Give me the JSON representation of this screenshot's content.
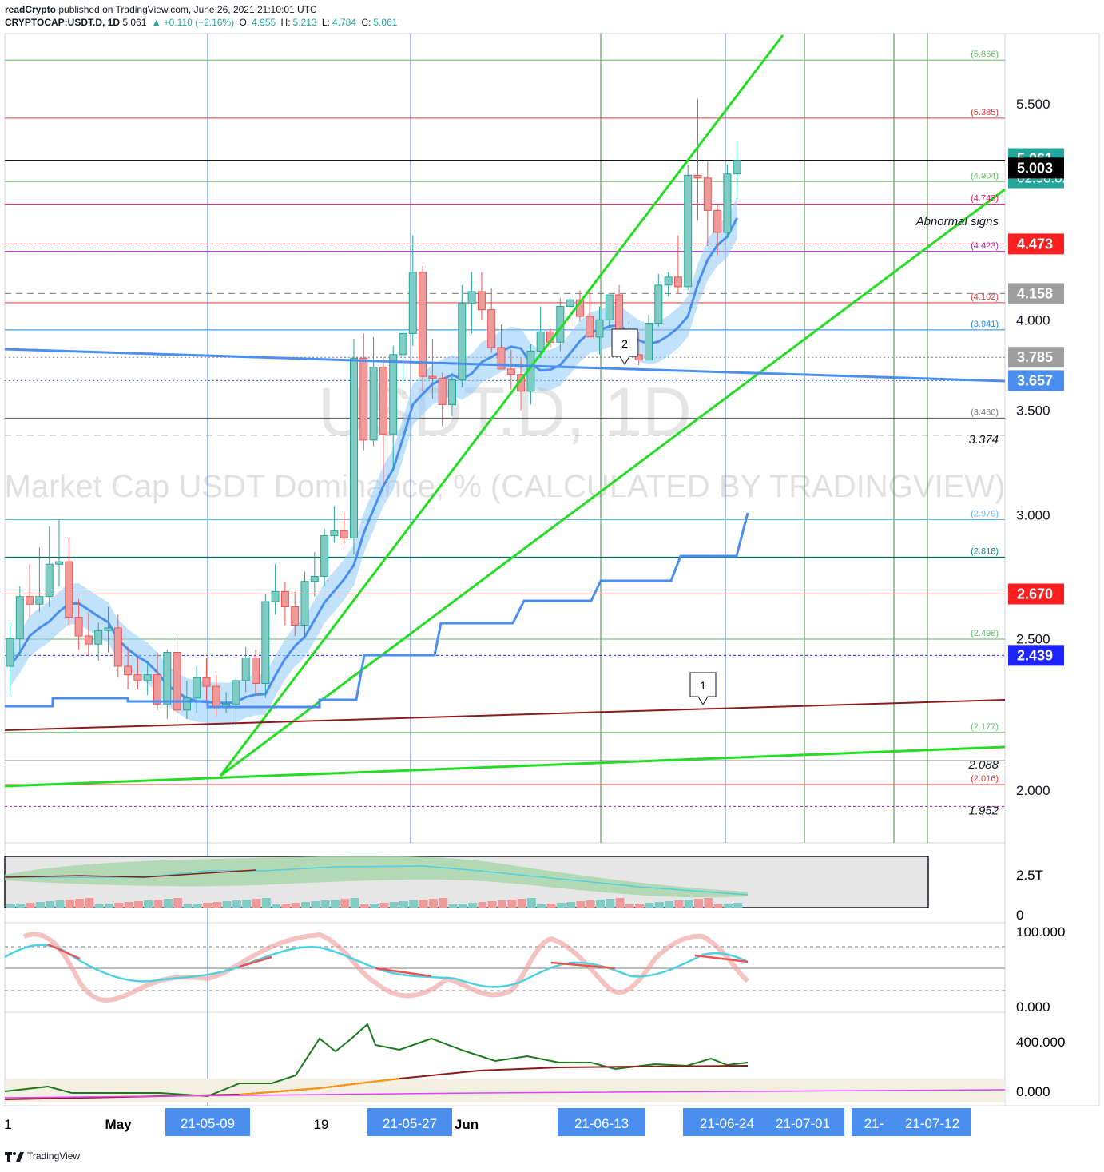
{
  "header": {
    "author": "readCrypto",
    "published_text": "published on TradingView.com, June 26, 2021 21:10:01 UTC",
    "symbol": "CRYPTOCAP:USDT.D, 1D",
    "last": "5.061",
    "change": "+0.110 (+2.16%)",
    "o_label": "O:",
    "o_value": "4.955",
    "h_label": "H:",
    "h_value": "5.213",
    "l_label": "L:",
    "l_value": "4.784",
    "c_label": "C:",
    "c_value": "5.061"
  },
  "footer": {
    "brand": "TradingView"
  },
  "watermark": {
    "symbol": "USDT.D, 1D",
    "description": "Market Cap USDT Dominance, % (CALCULATED BY TRADINGVIEW)"
  },
  "annotations": {
    "abnormal": "Abnormal signs",
    "callout_1": "1",
    "callout_2": "2"
  },
  "price_axis": {
    "ticks": [
      "5.500",
      "4.000",
      "3.500",
      "3.000",
      "2.500",
      "2.000"
    ],
    "badges": [
      {
        "text": "5.061",
        "sub": "02:50:02",
        "bg": "#26a69a"
      },
      {
        "text": "5.003",
        "bg": "#000000"
      },
      {
        "text": "4.473",
        "bg": "#ff1e1e"
      },
      {
        "text": "4.158",
        "bg": "#9e9e9e"
      },
      {
        "text": "3.785",
        "bg": "#9e9e9e"
      },
      {
        "text": "3.657",
        "bg": "#4a8ff0"
      },
      {
        "text": "2.670",
        "bg": "#ff1e1e"
      },
      {
        "text": "2.439",
        "bg": "#1e24ff"
      }
    ],
    "level_labels": [
      {
        "text": "(5.866)",
        "color": "#66bb6a"
      },
      {
        "text": "(5.385)",
        "color": "#e53935"
      },
      {
        "text": "(4.904)",
        "color": "#66bb6a"
      },
      {
        "text": "(4.743)",
        "color": "#d81b60"
      },
      {
        "text": "(4.423)",
        "color": "#8e24aa"
      },
      {
        "text": "(4.102)",
        "color": "#e53935"
      },
      {
        "text": "(3.941)",
        "color": "#1e88e5"
      },
      {
        "text": "(3.460)",
        "color": "#757575"
      },
      {
        "text": "3.374",
        "color": "#131722"
      },
      {
        "text": "(2.979)",
        "color": "#64b5f6"
      },
      {
        "text": "(2.818)",
        "color": "#00897b"
      },
      {
        "text": "(2.498)",
        "color": "#66bb6a"
      },
      {
        "text": "(2.177)",
        "color": "#66bb6a"
      },
      {
        "text": "2.088",
        "color": "#131722"
      },
      {
        "text": "(2.016)",
        "color": "#e53935"
      },
      {
        "text": "1.952",
        "color": "#131722"
      }
    ],
    "volume_ticks": [
      "2.5T",
      "0"
    ],
    "osc_ticks": [
      "100.000",
      "0.000"
    ],
    "obv_ticks": [
      "400.000",
      "0.000"
    ]
  },
  "time_axis": {
    "labels": [
      "1",
      "May",
      "19",
      "Jun"
    ],
    "highlighted": [
      "21-05-09",
      "21-05-27",
      "21-06-13",
      "21-06-24",
      "21-07-01",
      "21-",
      "21-07-12"
    ]
  },
  "chart_data": {
    "type": "candlestick",
    "symbol": "CRYPTOCAP:USDT.D",
    "interval": "1D",
    "y_scale": "log",
    "ylim": [
      1.85,
      6.1
    ],
    "candles_ohlc": [
      [
        2.4,
        2.56,
        2.3,
        2.5
      ],
      [
        2.5,
        2.7,
        2.44,
        2.66
      ],
      [
        2.66,
        2.79,
        2.58,
        2.63
      ],
      [
        2.63,
        2.86,
        2.6,
        2.66
      ],
      [
        2.66,
        2.95,
        2.62,
        2.79
      ],
      [
        2.79,
        2.98,
        2.7,
        2.8
      ],
      [
        2.8,
        2.9,
        2.55,
        2.58
      ],
      [
        2.58,
        2.65,
        2.46,
        2.51
      ],
      [
        2.51,
        2.6,
        2.44,
        2.48
      ],
      [
        2.48,
        2.56,
        2.42,
        2.53
      ],
      [
        2.53,
        2.62,
        2.45,
        2.54
      ],
      [
        2.54,
        2.59,
        2.36,
        2.4
      ],
      [
        2.4,
        2.47,
        2.32,
        2.37
      ],
      [
        2.37,
        2.43,
        2.32,
        2.35
      ],
      [
        2.35,
        2.42,
        2.3,
        2.37
      ],
      [
        2.37,
        2.45,
        2.25,
        2.27
      ],
      [
        2.27,
        2.46,
        2.22,
        2.45
      ],
      [
        2.45,
        2.51,
        2.21,
        2.25
      ],
      [
        2.25,
        2.35,
        2.22,
        2.29
      ],
      [
        2.29,
        2.4,
        2.24,
        2.36
      ],
      [
        2.36,
        2.43,
        2.28,
        2.33
      ],
      [
        2.33,
        2.37,
        2.23,
        2.26
      ],
      [
        2.26,
        2.31,
        2.24,
        2.27
      ],
      [
        2.27,
        2.36,
        2.2,
        2.35
      ],
      [
        2.35,
        2.47,
        2.31,
        2.43
      ],
      [
        2.43,
        2.46,
        2.3,
        2.34
      ],
      [
        2.34,
        2.67,
        2.29,
        2.64
      ],
      [
        2.64,
        2.79,
        2.59,
        2.68
      ],
      [
        2.68,
        2.72,
        2.55,
        2.62
      ],
      [
        2.62,
        2.68,
        2.51,
        2.55
      ],
      [
        2.55,
        2.76,
        2.5,
        2.72
      ],
      [
        2.72,
        2.84,
        2.66,
        2.74
      ],
      [
        2.74,
        2.94,
        2.7,
        2.91
      ],
      [
        2.91,
        3.04,
        2.88,
        2.93
      ],
      [
        2.93,
        3.01,
        2.87,
        2.9
      ],
      [
        2.9,
        3.89,
        2.83,
        3.78
      ],
      [
        3.78,
        3.92,
        3.3,
        3.35
      ],
      [
        3.35,
        3.9,
        3.32,
        3.73
      ],
      [
        3.73,
        3.79,
        3.14,
        3.38
      ],
      [
        3.38,
        3.85,
        3.2,
        3.8
      ],
      [
        3.8,
        3.94,
        3.65,
        3.92
      ],
      [
        3.92,
        4.53,
        3.85,
        4.29
      ],
      [
        4.29,
        4.33,
        3.6,
        3.68
      ],
      [
        3.68,
        3.89,
        3.56,
        3.67
      ],
      [
        3.67,
        3.7,
        3.42,
        3.53
      ],
      [
        3.53,
        3.7,
        3.47,
        3.66
      ],
      [
        3.66,
        4.21,
        3.62,
        4.1
      ],
      [
        4.1,
        4.29,
        3.92,
        4.17
      ],
      [
        4.17,
        4.29,
        4.0,
        4.06
      ],
      [
        4.06,
        4.19,
        3.81,
        3.84
      ],
      [
        3.84,
        3.97,
        3.73,
        3.72
      ],
      [
        3.72,
        3.83,
        3.61,
        3.69
      ],
      [
        3.69,
        3.78,
        3.5,
        3.6
      ],
      [
        3.6,
        3.86,
        3.53,
        3.82
      ],
      [
        3.82,
        4.08,
        3.78,
        3.93
      ],
      [
        3.93,
        3.95,
        3.84,
        3.87
      ],
      [
        3.87,
        4.13,
        3.82,
        4.08
      ],
      [
        4.08,
        4.16,
        3.98,
        4.12
      ],
      [
        4.12,
        4.18,
        3.99,
        4.02
      ],
      [
        4.02,
        4.17,
        3.9,
        3.9
      ],
      [
        3.9,
        4.08,
        3.8,
        4.0
      ],
      [
        4.0,
        4.13,
        3.95,
        4.15
      ],
      [
        4.15,
        4.21,
        3.98,
        3.92
      ],
      [
        3.92,
        3.99,
        3.75,
        3.8
      ],
      [
        3.8,
        3.93,
        3.74,
        3.77
      ],
      [
        3.77,
        4.03,
        3.77,
        3.98
      ],
      [
        3.98,
        4.28,
        3.96,
        4.21
      ],
      [
        4.21,
        4.29,
        4.14,
        4.26
      ],
      [
        4.26,
        4.53,
        4.16,
        4.2
      ],
      [
        4.2,
        5.03,
        4.18,
        4.95
      ],
      [
        4.95,
        5.54,
        4.63,
        4.93
      ],
      [
        4.93,
        5.05,
        4.46,
        4.7
      ],
      [
        4.7,
        4.74,
        4.4,
        4.55
      ],
      [
        4.55,
        5.03,
        4.51,
        4.96
      ],
      [
        4.96,
        5.21,
        4.78,
        5.06
      ]
    ],
    "levels": [
      5.866,
      5.385,
      4.904,
      4.743,
      4.473,
      4.423,
      4.158,
      4.102,
      3.941,
      3.785,
      3.657,
      3.46,
      3.374,
      2.979,
      2.818,
      2.67,
      2.498,
      2.439,
      2.177,
      2.088,
      2.016,
      1.952
    ],
    "last_price": 5.061,
    "countdown": "02:50:02"
  }
}
